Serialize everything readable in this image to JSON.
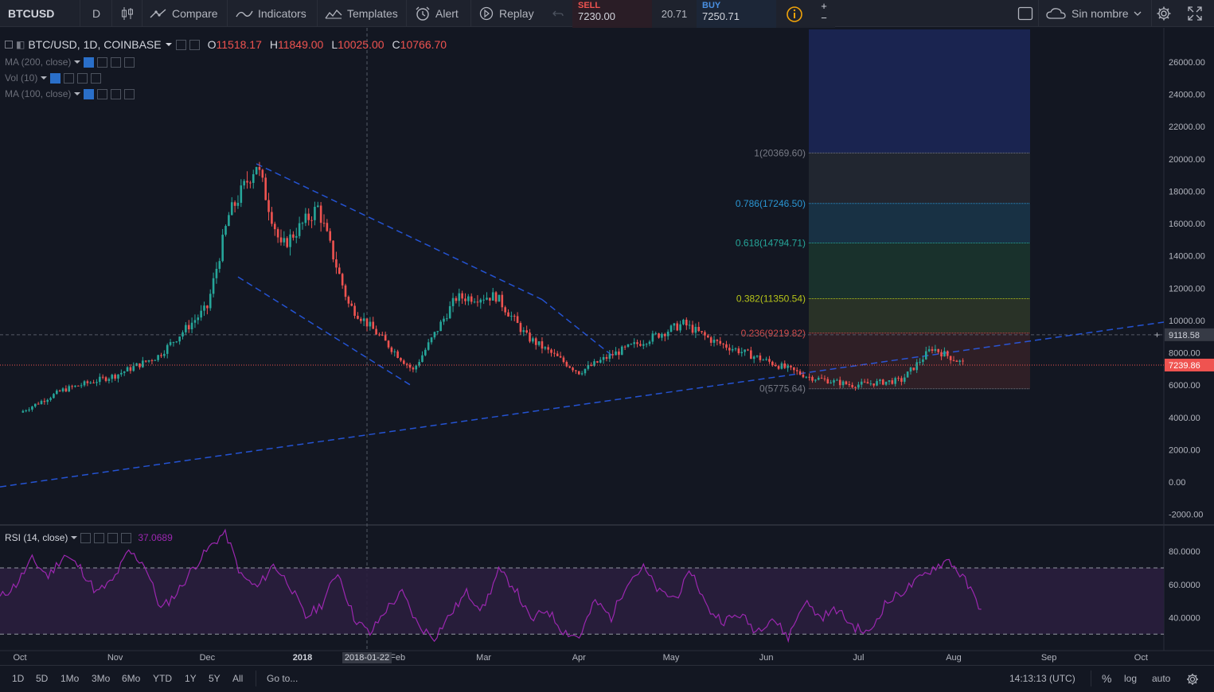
{
  "topbar": {
    "symbol": "BTCUSD",
    "interval": "D",
    "compare": "Compare",
    "indicators": "Indicators",
    "templates": "Templates",
    "alert": "Alert",
    "replay": "Replay",
    "layout_name": "Sin nombre"
  },
  "trade": {
    "sell_label": "SELL",
    "sell_price": "7230.00",
    "spread": "20.71",
    "buy_label": "BUY",
    "buy_price": "7250.71",
    "plus": "+",
    "minus": "−"
  },
  "legend": {
    "title": "BTC/USD, 1D, COINBASE",
    "o_label": "O",
    "o_value": "11518.17",
    "h_label": "H",
    "h_value": "11849.00",
    "l_label": "L",
    "l_value": "10025.00",
    "c_label": "C",
    "c_value": "10766.70",
    "studies": [
      "MA (200, close)",
      "Vol (10)",
      "MA (100, close)"
    ]
  },
  "rsi_legend": {
    "label": "RSI (14, close)",
    "value": "37.0689"
  },
  "chart_data": {
    "type": "candlestick",
    "title": "BTC/USD, 1D, COINBASE",
    "ylim": [
      -2500,
      28000
    ],
    "price_ticks": [
      "26000.00",
      "24000.00",
      "22000.00",
      "20000.00",
      "18000.00",
      "16000.00",
      "14000.00",
      "12000.00",
      "10000.00",
      "8000.00",
      "6000.00",
      "4000.00",
      "2000.00",
      "0.00",
      "-2000.00"
    ],
    "crosshair_price": "9118.58",
    "last_price": "7239.86",
    "x_ticks": [
      "Oct",
      "Nov",
      "Dec",
      "2018",
      "Feb",
      "Mar",
      "Apr",
      "May",
      "Jun",
      "Jul",
      "Aug",
      "Sep",
      "Oct"
    ],
    "crosshair_date": "2018-01-22",
    "series": [
      {
        "name": "BTC/USD close (approx. weekly)",
        "dates": [
          "2017-10-01",
          "2017-10-15",
          "2017-11-01",
          "2017-11-15",
          "2017-12-01",
          "2017-12-08",
          "2017-12-17",
          "2017-12-25",
          "2018-01-06",
          "2018-01-16",
          "2018-02-06",
          "2018-02-20",
          "2018-03-05",
          "2018-03-15",
          "2018-04-01",
          "2018-04-12",
          "2018-05-05",
          "2018-05-15",
          "2018-06-01",
          "2018-06-15",
          "2018-06-29",
          "2018-07-15",
          "2018-07-25",
          "2018-08-05"
        ],
        "close": [
          4300,
          5700,
          6600,
          7800,
          10800,
          16500,
          19700,
          14500,
          17000,
          11000,
          6900,
          11400,
          11500,
          9000,
          6800,
          7900,
          9800,
          8700,
          7500,
          6500,
          6000,
          6300,
          8300,
          7240
        ]
      }
    ],
    "fibonacci": [
      {
        "level": "1(20369.60)",
        "value": 20369.6
      },
      {
        "level": "0.786(17246.50)",
        "value": 17246.5
      },
      {
        "level": "0.618(14794.71)",
        "value": 14794.71
      },
      {
        "level": "0.382(11350.54)",
        "value": 11350.54
      },
      {
        "level": "0.236(9219.82)",
        "value": 9219.82
      },
      {
        "level": "0(5775.64)",
        "value": 5775.64
      }
    ],
    "rsi": {
      "ylim": [
        20,
        95
      ],
      "ticks": [
        "80.0000",
        "60.0000",
        "40.0000"
      ],
      "bands": [
        70,
        30
      ],
      "values": [
        52,
        60,
        75,
        65,
        78,
        70,
        55,
        62,
        80,
        72,
        45,
        55,
        70,
        82,
        92,
        65,
        58,
        72,
        60,
        40,
        48,
        68,
        40,
        30,
        45,
        55,
        35,
        28,
        42,
        55,
        45,
        68,
        58,
        38,
        45,
        32,
        28,
        50,
        40,
        62,
        70,
        55,
        52,
        68,
        45,
        38,
        42,
        32,
        40,
        28,
        50,
        40,
        45,
        35,
        30,
        48,
        55,
        62,
        70,
        75,
        62,
        45
      ]
    }
  },
  "bottombar": {
    "ranges": [
      "1D",
      "5D",
      "1Mo",
      "3Mo",
      "6Mo",
      "YTD",
      "1Y",
      "5Y",
      "All"
    ],
    "goto": "Go to...",
    "clock": "14:13:13 (UTC)",
    "percent": "%",
    "log": "log",
    "auto": "auto"
  }
}
